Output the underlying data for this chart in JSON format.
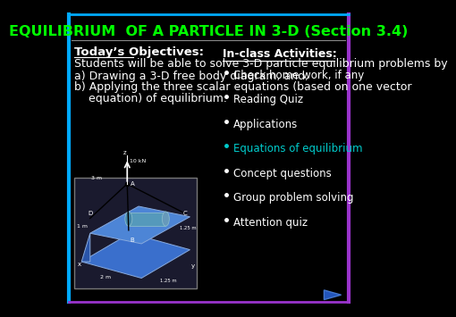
{
  "title": "EQUILIBRIUM  OF A PARTICLE IN 3-D (Section 3.4)",
  "title_color": "#00ff00",
  "title_fontsize": 11.5,
  "background_color": "#000000",
  "border_color_left": "#00aaff",
  "border_color_right": "#9933cc",
  "objectives_header": "Today’s Objectives:",
  "objectives_header_color": "#ffffff",
  "objectives_intro": "Students will be able to solve 3-D particle equilibrium problems by",
  "objectives_a": "a) Drawing a 3-D free body diagram, and,",
  "objectives_b1": "b) Applying the three scalar equations (based on one vector",
  "objectives_b2": "    equation) of equilibrium.",
  "text_color": "#ffffff",
  "activities_header": "In-class Activities:",
  "activities_header_color": "#ffffff",
  "activities": [
    {
      "text": "Check home work, if any",
      "color": "#ffffff"
    },
    {
      "text": "Reading Quiz",
      "color": "#ffffff"
    },
    {
      "text": "Applications",
      "color": "#ffffff"
    },
    {
      "text": "Equations of equilibrium",
      "color": "#00cccc"
    },
    {
      "text": "Concept questions",
      "color": "#ffffff"
    },
    {
      "text": "Group problem solving",
      "color": "#ffffff"
    },
    {
      "text": "Attention quiz",
      "color": "#ffffff"
    }
  ],
  "bullet_color": "#ffffff",
  "bullet_eq_color": "#00cccc",
  "font_size_body": 9.5,
  "font_size_activities": 9.0
}
